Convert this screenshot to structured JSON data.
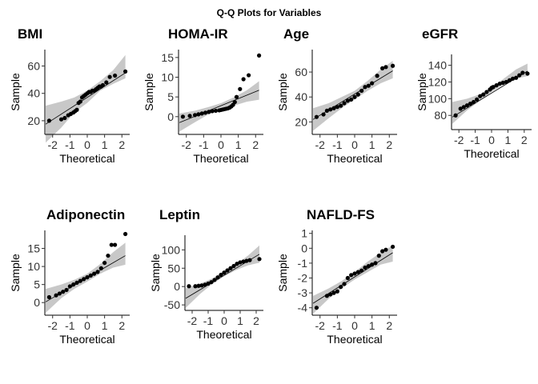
{
  "title": "Q-Q Plots for Variables",
  "chart_data": [
    {
      "type": "scatter",
      "title": "BMI",
      "xlabel": "Theoretical",
      "ylabel": "Sample",
      "xticks": [
        -2,
        -1,
        0,
        1,
        2
      ],
      "xtick_labels": [
        "-2",
        "-1",
        "0",
        "1",
        "2"
      ],
      "yticks": [
        20,
        40,
        60
      ],
      "xlim": [
        -2.45,
        2.45
      ],
      "ylim": [
        10,
        72
      ],
      "x": [
        -2.2,
        -1.5,
        -1.3,
        -1.1,
        -0.95,
        -0.8,
        -0.7,
        -0.6,
        -0.5,
        -0.4,
        -0.3,
        -0.2,
        -0.1,
        0.0,
        0.1,
        0.2,
        0.3,
        0.4,
        0.5,
        0.6,
        0.7,
        0.8,
        0.9,
        1.1,
        1.3,
        1.6,
        2.2
      ],
      "y": [
        20,
        21,
        22,
        24,
        25,
        26,
        27,
        28,
        33,
        34,
        37,
        38,
        39,
        40,
        41,
        41,
        42,
        42,
        43,
        44,
        45,
        45,
        46,
        48,
        52,
        53,
        56
      ],
      "reference_line": [
        [
          -2.4,
          17.5
        ],
        [
          2.2,
          55
        ]
      ],
      "band": {
        "x": [
          -2.4,
          -1.5,
          -0.75,
          0.0,
          0.75,
          1.5,
          2.2
        ],
        "lower": [
          4,
          15,
          26,
          33,
          42,
          47,
          51
        ],
        "upper": [
          31,
          34,
          37,
          42,
          49,
          57,
          68
        ]
      }
    },
    {
      "type": "scatter",
      "title": "HOMA-IR",
      "xlabel": "Theoretical",
      "ylabel": "Sample",
      "xticks": [
        -2,
        -1,
        0,
        1,
        2
      ],
      "xtick_labels": [
        "-2",
        "-1",
        "0",
        "1",
        "2"
      ],
      "yticks": [
        0,
        5,
        10,
        15
      ],
      "xlim": [
        -2.45,
        2.45
      ],
      "ylim": [
        -4.5,
        17
      ],
      "x": [
        -2.2,
        -1.8,
        -1.5,
        -1.3,
        -1.1,
        -0.9,
        -0.7,
        -0.5,
        -0.3,
        -0.1,
        0.0,
        0.1,
        0.2,
        0.3,
        0.4,
        0.5,
        0.6,
        0.7,
        0.8,
        0.9,
        1.1,
        1.3,
        1.6,
        2.2
      ],
      "y": [
        0.0,
        0.2,
        0.4,
        0.6,
        0.8,
        1.0,
        1.2,
        1.4,
        1.5,
        1.6,
        1.7,
        1.8,
        1.9,
        2.0,
        2.1,
        2.3,
        2.6,
        3.0,
        3.7,
        5.0,
        7.0,
        9.5,
        10.5,
        15.5
      ],
      "reference_line": [
        [
          -2.4,
          -1.5
        ],
        [
          2.2,
          6.7
        ]
      ],
      "band": {
        "x": [
          -2.4,
          -1.5,
          -0.75,
          0.0,
          0.75,
          1.5,
          2.2
        ],
        "lower": [
          -3.8,
          -1.4,
          0.5,
          1.8,
          2.8,
          3.8,
          4.3
        ],
        "upper": [
          0.8,
          1.5,
          2.4,
          3.4,
          4.9,
          6.7,
          9.0
        ]
      }
    },
    {
      "type": "scatter",
      "title": "Age",
      "xlabel": "Theoretical",
      "ylabel": "Sample",
      "xticks": [
        -2,
        -1,
        0,
        1,
        2
      ],
      "xtick_labels": [
        "-2",
        "-1",
        "0",
        "1",
        "2"
      ],
      "yticks": [
        20,
        40,
        60
      ],
      "xlim": [
        -2.45,
        2.45
      ],
      "ylim": [
        10,
        78
      ],
      "x": [
        -2.2,
        -1.8,
        -1.6,
        -1.4,
        -1.2,
        -1.0,
        -0.8,
        -0.6,
        -0.4,
        -0.2,
        0.0,
        0.2,
        0.4,
        0.6,
        0.8,
        1.0,
        1.3,
        1.6,
        1.8,
        2.2
      ],
      "y": [
        24,
        26,
        29,
        30,
        31,
        32,
        33,
        35,
        37,
        38,
        40,
        42,
        45,
        48,
        49,
        51,
        57,
        63,
        64,
        65
      ],
      "reference_line": [
        [
          -2.4,
          22
        ],
        [
          2.2,
          61
        ]
      ],
      "band": {
        "x": [
          -2.4,
          -1.5,
          -0.75,
          0.0,
          0.75,
          1.5,
          2.2
        ],
        "lower": [
          13,
          23,
          31,
          38,
          45,
          51,
          55
        ],
        "upper": [
          31,
          35,
          40,
          45,
          53,
          62,
          69
        ]
      }
    },
    {
      "type": "scatter",
      "title": "eGFR",
      "xlabel": "Theoretical",
      "ylabel": "Sample",
      "xticks": [
        -2,
        -1,
        0,
        1,
        2
      ],
      "xtick_labels": [
        "-2",
        "-1",
        "0",
        "1",
        "2"
      ],
      "yticks": [
        80,
        100,
        120,
        140
      ],
      "xlim": [
        -2.45,
        2.45
      ],
      "ylim": [
        63,
        153
      ],
      "x": [
        -2.2,
        -1.9,
        -1.7,
        -1.5,
        -1.3,
        -1.1,
        -0.9,
        -0.7,
        -0.5,
        -0.3,
        -0.1,
        0.0,
        0.1,
        0.3,
        0.5,
        0.7,
        0.9,
        1.1,
        1.3,
        1.5,
        1.7,
        1.9,
        2.2
      ],
      "y": [
        80,
        88,
        90,
        92,
        94,
        96,
        99,
        103,
        105,
        108,
        111,
        113,
        114,
        116,
        118,
        119,
        120,
        122,
        124,
        125,
        128,
        131,
        130
      ],
      "reference_line": [
        [
          -2.4,
          78
        ],
        [
          2.2,
          133
        ]
      ],
      "band": {
        "x": [
          -2.4,
          -1.5,
          -0.75,
          0.0,
          0.75,
          1.5,
          2.2
        ],
        "lower": [
          70,
          86,
          97,
          108,
          117,
          124,
          127
        ],
        "upper": [
          96,
          100,
          105,
          113,
          124,
          135,
          142
        ]
      }
    },
    {
      "type": "scatter",
      "title": "Adiponectin",
      "xlabel": "Theoretical",
      "ylabel": "Sample",
      "xticks": [
        -2,
        -1,
        0,
        1,
        2
      ],
      "xtick_labels": [
        "-2",
        "-1",
        "0",
        "1",
        "2"
      ],
      "yticks": [
        0,
        5,
        10,
        15
      ],
      "xlim": [
        -2.45,
        2.45
      ],
      "ylim": [
        -3.5,
        20
      ],
      "x": [
        -2.2,
        -1.8,
        -1.6,
        -1.4,
        -1.2,
        -1.0,
        -0.8,
        -0.6,
        -0.4,
        -0.2,
        0.0,
        0.2,
        0.4,
        0.6,
        0.8,
        1.0,
        1.2,
        1.4,
        1.6,
        2.2
      ],
      "y": [
        1.5,
        2.0,
        2.5,
        3.0,
        3.5,
        4.5,
        5.0,
        5.5,
        6.0,
        6.5,
        7.0,
        7.5,
        8.0,
        8.5,
        9.5,
        11.0,
        13.0,
        16.0,
        16.0,
        19.0
      ],
      "reference_line": [
        [
          -2.4,
          0.2
        ],
        [
          2.2,
          13.0
        ]
      ],
      "band": {
        "x": [
          -2.4,
          -1.5,
          -0.75,
          0.0,
          0.75,
          1.5,
          2.2
        ],
        "lower": [
          -2.8,
          1.2,
          3.8,
          5.8,
          8.0,
          9.7,
          10.5
        ],
        "upper": [
          3.8,
          5.0,
          6.3,
          8.0,
          10.7,
          14.0,
          16.6
        ]
      }
    },
    {
      "type": "scatter",
      "title": "Leptin",
      "xlabel": "Theoretical",
      "ylabel": "Sample",
      "xticks": [
        -2,
        -1,
        0,
        1,
        2
      ],
      "xtick_labels": [
        "-2",
        "-1",
        "0",
        "1",
        "2"
      ],
      "yticks": [
        -50,
        0,
        50,
        100
      ],
      "xlim": [
        -2.45,
        2.45
      ],
      "ylim": [
        -65,
        140
      ],
      "x": [
        -2.2,
        -1.8,
        -1.6,
        -1.4,
        -1.2,
        -1.0,
        -0.8,
        -0.6,
        -0.4,
        -0.2,
        0.0,
        0.2,
        0.4,
        0.6,
        0.8,
        1.0,
        1.2,
        1.4,
        1.6,
        2.2
      ],
      "y": [
        1,
        1,
        2,
        3,
        5,
        8,
        12,
        18,
        25,
        32,
        38,
        44,
        50,
        56,
        62,
        66,
        68,
        70,
        72,
        75
      ],
      "reference_line": [
        [
          -2.4,
          -32
        ],
        [
          2.2,
          88
        ]
      ],
      "band": {
        "x": [
          -2.4,
          -1.5,
          -0.75,
          0.0,
          0.75,
          1.5,
          2.2
        ],
        "lower": [
          -58,
          -20,
          7,
          28,
          45,
          58,
          65
        ],
        "upper": [
          -5,
          8,
          22,
          40,
          60,
          85,
          112
        ]
      }
    },
    {
      "type": "scatter",
      "title": "NAFLD-FS",
      "xlabel": "Theoretical",
      "ylabel": "Sample",
      "xticks": [
        -2,
        -1,
        0,
        1,
        2
      ],
      "xtick_labels": [
        "-2",
        "-1",
        "0",
        "1",
        "2"
      ],
      "yticks": [
        -4,
        -3,
        -2,
        -1,
        0,
        1
      ],
      "xlim": [
        -2.45,
        2.45
      ],
      "ylim": [
        -4.5,
        1.2
      ],
      "x": [
        -2.2,
        -1.6,
        -1.4,
        -1.2,
        -1.0,
        -0.8,
        -0.6,
        -0.4,
        -0.2,
        0.0,
        0.2,
        0.4,
        0.6,
        0.8,
        1.0,
        1.2,
        1.4,
        1.6,
        1.8,
        2.2
      ],
      "y": [
        -4.0,
        -3.2,
        -3.1,
        -3.0,
        -2.9,
        -2.6,
        -2.4,
        -2.0,
        -1.8,
        -1.7,
        -1.6,
        -1.5,
        -1.3,
        -1.2,
        -1.1,
        -1.0,
        -0.5,
        -0.2,
        -0.1,
        0.1
      ],
      "reference_line": [
        [
          -2.4,
          -3.7
        ],
        [
          2.2,
          -0.3
        ]
      ],
      "band": {
        "x": [
          -2.4,
          -1.5,
          -0.75,
          0.0,
          0.75,
          1.5,
          2.2
        ],
        "lower": [
          -4.4,
          -3.4,
          -2.7,
          -2.1,
          -1.6,
          -1.1,
          -0.9
        ],
        "upper": [
          -3.2,
          -2.7,
          -2.2,
          -1.6,
          -0.9,
          -0.3,
          0.2
        ]
      }
    }
  ]
}
